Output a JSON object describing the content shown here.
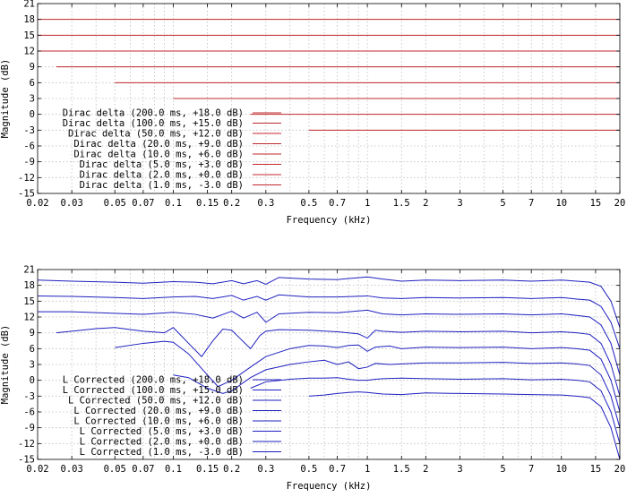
{
  "chart_data": [
    {
      "type": "line",
      "xlabel": "Frequency (kHz)",
      "ylabel": "Magnitude (dB)",
      "xscale": "log",
      "xlim": [
        0.02,
        20
      ],
      "ylim": [
        -15,
        21
      ],
      "x_ticks": [
        "0.02",
        "0.03",
        "0.05",
        "0.07",
        "0.1",
        "0.15",
        "0.2",
        "0.3",
        "0.5",
        "0.7",
        "1",
        "1.5",
        "2",
        "3",
        "5",
        "7",
        "10",
        "15",
        "20"
      ],
      "y_ticks": [
        "21",
        "18",
        "15",
        "12",
        "9",
        "6",
        "3",
        "0",
        "-3",
        "-6",
        "-9",
        "-12",
        "-15"
      ],
      "grid": true,
      "legend_position": "lower-left",
      "color": "#c0282d",
      "series": [
        {
          "name": "Dirac delta (200.0 ms, +18.0 dB)",
          "x": [
            0.02,
            20
          ],
          "y": [
            18,
            18
          ]
        },
        {
          "name": "Dirac delta (100.0 ms, +15.0 dB)",
          "x": [
            0.02,
            20
          ],
          "y": [
            15,
            15
          ]
        },
        {
          "name": "Dirac delta (50.0 ms, +12.0 dB)",
          "x": [
            0.02,
            20
          ],
          "y": [
            12,
            12
          ]
        },
        {
          "name": "Dirac delta (20.0 ms, +9.0 dB)",
          "x": [
            0.025,
            20
          ],
          "y": [
            9,
            9
          ]
        },
        {
          "name": "Dirac delta (10.0 ms, +6.0 dB)",
          "x": [
            0.05,
            20
          ],
          "y": [
            6,
            6
          ]
        },
        {
          "name": "Dirac delta (5.0 ms, +3.0 dB)",
          "x": [
            0.1,
            20
          ],
          "y": [
            3,
            3
          ]
        },
        {
          "name": "Dirac delta (2.0 ms, +0.0 dB)",
          "x": [
            0.25,
            20
          ],
          "y": [
            0,
            0
          ]
        },
        {
          "name": "Dirac delta (1.0 ms, -3.0 dB)",
          "x": [
            0.5,
            20
          ],
          "y": [
            -3,
            -3
          ]
        }
      ]
    },
    {
      "type": "line",
      "xlabel": "Frequency (kHz)",
      "ylabel": "Magnitude (dB)",
      "xscale": "log",
      "xlim": [
        0.02,
        20
      ],
      "ylim": [
        -15,
        21
      ],
      "x_ticks": [
        "0.02",
        "0.03",
        "0.05",
        "0.07",
        "0.1",
        "0.15",
        "0.2",
        "0.3",
        "0.5",
        "0.7",
        "1",
        "1.5",
        "2",
        "3",
        "5",
        "7",
        "10",
        "15",
        "20"
      ],
      "y_ticks": [
        "21",
        "18",
        "15",
        "12",
        "9",
        "6",
        "3",
        "0",
        "-3",
        "-6",
        "-9",
        "-12",
        "-15"
      ],
      "grid": true,
      "legend_position": "lower-left",
      "color": "#1f1fbf",
      "series": [
        {
          "name": "L Corrected (200.0 ms, +18.0 dB)",
          "x": [
            0.02,
            0.03,
            0.05,
            0.07,
            0.1,
            0.13,
            0.16,
            0.2,
            0.23,
            0.27,
            0.3,
            0.35,
            0.5,
            0.7,
            1.0,
            1.2,
            1.5,
            2,
            3,
            5,
            7,
            10,
            12,
            14,
            16,
            18,
            20
          ],
          "y": [
            19,
            18.8,
            18.6,
            18.4,
            18.7,
            18.6,
            18.3,
            18.9,
            18.3,
            18.9,
            18.2,
            19.5,
            19.2,
            19.1,
            19.6,
            19.2,
            18.8,
            19,
            18.9,
            19,
            18.8,
            19,
            18.8,
            18.6,
            17.8,
            15,
            10
          ]
        },
        {
          "name": "L Corrected (100.0 ms, +15.0 dB)",
          "x": [
            0.02,
            0.03,
            0.05,
            0.07,
            0.1,
            0.13,
            0.16,
            0.2,
            0.23,
            0.27,
            0.3,
            0.35,
            0.5,
            0.7,
            1.0,
            1.2,
            1.5,
            2,
            3,
            5,
            7,
            10,
            12,
            14,
            16,
            18,
            20
          ],
          "y": [
            16,
            15.9,
            15.7,
            15.5,
            15.8,
            15.9,
            15.5,
            16.1,
            15.2,
            15.9,
            15.2,
            16.2,
            15.8,
            15.8,
            16,
            15.6,
            15.5,
            15.7,
            15.6,
            15.7,
            15.5,
            15.7,
            15.4,
            15.2,
            14,
            11,
            6
          ]
        },
        {
          "name": "L Corrected (50.0 ms, +12.0 dB)",
          "x": [
            0.02,
            0.03,
            0.05,
            0.07,
            0.1,
            0.13,
            0.16,
            0.2,
            0.23,
            0.27,
            0.3,
            0.35,
            0.5,
            0.7,
            1.0,
            1.2,
            1.5,
            2,
            3,
            5,
            7,
            10,
            12,
            14,
            16,
            18,
            20
          ],
          "y": [
            13,
            13,
            12.7,
            12.5,
            12.9,
            12.5,
            11.8,
            13.1,
            11.8,
            12.9,
            11,
            12.6,
            12.9,
            12.8,
            13.3,
            12.6,
            12.4,
            12.6,
            12.5,
            12.6,
            12.4,
            12.6,
            12.3,
            12,
            10.5,
            7,
            1
          ]
        },
        {
          "name": "L Corrected (20.0 ms, +9.0 dB)",
          "x": [
            0.025,
            0.03,
            0.04,
            0.05,
            0.07,
            0.09,
            0.1,
            0.12,
            0.14,
            0.16,
            0.18,
            0.2,
            0.22,
            0.25,
            0.28,
            0.3,
            0.35,
            0.5,
            0.7,
            0.9,
            1.0,
            1.1,
            1.2,
            1.5,
            2,
            3,
            5,
            7,
            10,
            12,
            14,
            16,
            18,
            20
          ],
          "y": [
            9,
            9.3,
            9.8,
            10,
            9.3,
            9,
            10,
            7,
            4.5,
            7.5,
            9.7,
            9.5,
            8,
            6,
            8.5,
            9.3,
            9.6,
            9.5,
            9.2,
            8.8,
            8,
            9.5,
            9.3,
            9.1,
            9.3,
            9.2,
            9.3,
            9,
            9.2,
            9,
            8.7,
            7,
            3,
            -3
          ]
        },
        {
          "name": "L Corrected (10.0 ms, +6.0 dB)",
          "x": [
            0.05,
            0.07,
            0.09,
            0.1,
            0.12,
            0.15,
            0.17,
            0.2,
            0.25,
            0.3,
            0.4,
            0.5,
            0.6,
            0.7,
            0.8,
            0.9,
            1.0,
            1.1,
            1.3,
            1.5,
            2,
            3,
            5,
            7,
            10,
            12,
            14,
            16,
            18,
            20
          ],
          "y": [
            6.2,
            7,
            7.4,
            7.2,
            5,
            1,
            -1.2,
            0,
            2.5,
            4.5,
            6,
            6.6,
            6.5,
            6.2,
            6.6,
            6.7,
            5.5,
            6.3,
            6.5,
            6,
            6.3,
            6.2,
            6.3,
            6,
            6.2,
            6,
            5.7,
            4,
            0,
            -6
          ]
        },
        {
          "name": "L Corrected (5.0 ms, +3.0 dB)",
          "x": [
            0.1,
            0.12,
            0.15,
            0.18,
            0.2,
            0.25,
            0.3,
            0.4,
            0.5,
            0.6,
            0.7,
            0.8,
            0.9,
            1.0,
            1.1,
            1.3,
            1.5,
            2,
            3,
            5,
            7,
            10,
            12,
            14,
            16,
            18,
            20
          ],
          "y": [
            1,
            0.5,
            -1.5,
            -2.5,
            -2,
            0.5,
            2,
            3,
            3.5,
            3.8,
            3,
            3.5,
            2.2,
            2.5,
            3.2,
            3,
            3.1,
            3.3,
            3.3,
            3.4,
            3.2,
            3.3,
            3.1,
            2.8,
            1,
            -3,
            -9
          ]
        },
        {
          "name": "L Corrected (2.0 ms, +0.0 dB)",
          "x": [
            0.25,
            0.3,
            0.4,
            0.5,
            0.6,
            0.7,
            0.8,
            0.9,
            1.0,
            1.1,
            1.2,
            1.5,
            2,
            3,
            5,
            7,
            10,
            12,
            14,
            16,
            18,
            20
          ],
          "y": [
            -1.5,
            -0.3,
            0.2,
            0.4,
            0.4,
            0.5,
            0.2,
            0,
            0,
            0.2,
            0.3,
            0.4,
            0.3,
            0.2,
            0.3,
            0.1,
            0.2,
            0,
            -0.3,
            -2,
            -6,
            -12
          ]
        },
        {
          "name": "L Corrected (1.0 ms, -3.0 dB)",
          "x": [
            0.5,
            0.6,
            0.7,
            0.8,
            0.9,
            1.0,
            1.2,
            1.5,
            2,
            3,
            5,
            7,
            10,
            12,
            14,
            16,
            18,
            20
          ],
          "y": [
            -3,
            -2.8,
            -2.5,
            -2.3,
            -2.2,
            -2.3,
            -2.6,
            -2.7,
            -2.4,
            -2.5,
            -2.6,
            -2.7,
            -2.8,
            -3,
            -3.3,
            -5,
            -9,
            -15
          ]
        }
      ]
    }
  ]
}
